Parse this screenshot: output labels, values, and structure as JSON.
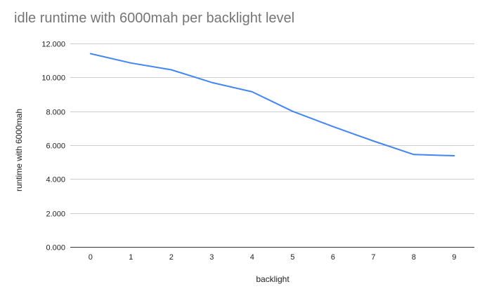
{
  "chart_data": {
    "type": "line",
    "title": "idle runtime with 6000mah per backlight level",
    "xlabel": "backlight",
    "ylabel": "runtime with 6000mah",
    "categories": [
      "0",
      "1",
      "2",
      "3",
      "4",
      "5",
      "6",
      "7",
      "8",
      "9"
    ],
    "series": [
      {
        "values": [
          11.4,
          10.85,
          10.45,
          9.7,
          9.15,
          8.0,
          7.1,
          6.25,
          5.45,
          5.38
        ],
        "color": "#4285f4"
      }
    ],
    "ylim": [
      0,
      12
    ],
    "yticks": [
      "0.000",
      "2.000",
      "4.000",
      "6.000",
      "8.000",
      "10.000",
      "12.000"
    ],
    "grid": true,
    "legend": "none"
  }
}
